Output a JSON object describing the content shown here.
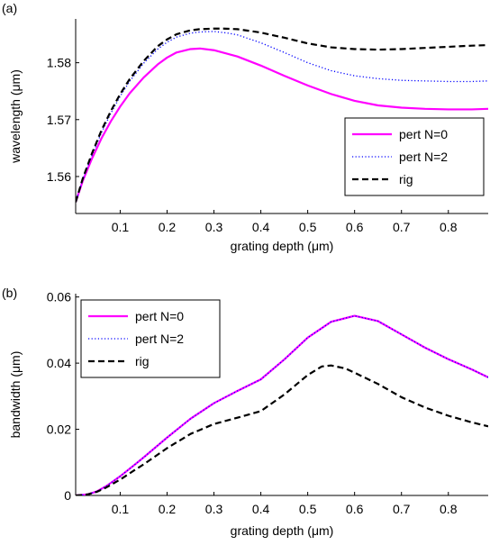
{
  "chart_data": [
    {
      "type": "line",
      "panel_label": "(a)",
      "xlabel": "grating depth (μm)",
      "ylabel": "wavelength (μm)",
      "xlim": [
        0.005,
        0.885
      ],
      "ylim": [
        1.5535,
        1.5877
      ],
      "xticks": [
        0.1,
        0.2,
        0.3,
        0.4,
        0.5,
        0.6,
        0.7,
        0.8
      ],
      "yticks": [
        1.56,
        1.57,
        1.58
      ],
      "ytick_labels": [
        "1.56",
        "1.57",
        "1.58"
      ],
      "legend_position": "bottom-right",
      "series": [
        {
          "name": "pert N=0",
          "color": "#ff00ff",
          "style": "solid",
          "x": [
            0.005,
            0.02,
            0.04,
            0.06,
            0.08,
            0.1,
            0.12,
            0.15,
            0.18,
            0.2,
            0.22,
            0.25,
            0.27,
            0.3,
            0.35,
            0.4,
            0.45,
            0.5,
            0.55,
            0.6,
            0.65,
            0.7,
            0.75,
            0.8,
            0.85,
            0.885
          ],
          "y": [
            1.5555,
            1.5592,
            1.5632,
            1.5667,
            1.5697,
            1.5723,
            1.5746,
            1.5774,
            1.5797,
            1.5809,
            1.5818,
            1.5824,
            1.5825,
            1.5822,
            1.5811,
            1.5795,
            1.5777,
            1.576,
            1.5745,
            1.5733,
            1.5725,
            1.5721,
            1.5719,
            1.5718,
            1.5718,
            1.5719
          ]
        },
        {
          "name": "pert N=2",
          "color": "#0000ff",
          "style": "dotted",
          "x": [
            0.005,
            0.02,
            0.04,
            0.06,
            0.08,
            0.1,
            0.12,
            0.15,
            0.18,
            0.2,
            0.22,
            0.25,
            0.27,
            0.3,
            0.33,
            0.35,
            0.4,
            0.45,
            0.5,
            0.55,
            0.6,
            0.65,
            0.7,
            0.75,
            0.8,
            0.85,
            0.885
          ],
          "y": [
            1.5555,
            1.5595,
            1.5638,
            1.5677,
            1.5711,
            1.5741,
            1.5767,
            1.5799,
            1.5824,
            1.5836,
            1.5845,
            1.5852,
            1.5854,
            1.5855,
            1.5852,
            1.5849,
            1.5835,
            1.5818,
            1.58,
            1.5786,
            1.5777,
            1.5772,
            1.5769,
            1.5768,
            1.5767,
            1.5767,
            1.5768
          ]
        },
        {
          "name": "rig",
          "color": "#000000",
          "style": "dashed",
          "x": [
            0.005,
            0.02,
            0.04,
            0.06,
            0.08,
            0.1,
            0.12,
            0.15,
            0.18,
            0.2,
            0.22,
            0.25,
            0.27,
            0.3,
            0.32,
            0.35,
            0.4,
            0.45,
            0.5,
            0.55,
            0.6,
            0.65,
            0.7,
            0.75,
            0.8,
            0.85,
            0.885
          ],
          "y": [
            1.5555,
            1.5596,
            1.5641,
            1.5681,
            1.5715,
            1.5745,
            1.5771,
            1.5803,
            1.5829,
            1.5841,
            1.585,
            1.5857,
            1.5859,
            1.586,
            1.586,
            1.5859,
            1.5853,
            1.5844,
            1.5834,
            1.5827,
            1.5824,
            1.5823,
            1.5824,
            1.5826,
            1.5828,
            1.583,
            1.5831
          ]
        }
      ]
    },
    {
      "type": "line",
      "panel_label": "(b)",
      "xlabel": "grating depth (μm)",
      "ylabel": "bandwidth (μm)",
      "xlim": [
        0.005,
        0.885
      ],
      "ylim": [
        0,
        0.061
      ],
      "xticks": [
        0.1,
        0.2,
        0.3,
        0.4,
        0.5,
        0.6,
        0.7,
        0.8
      ],
      "yticks": [
        0,
        0.02,
        0.04,
        0.06
      ],
      "ytick_labels": [
        "0",
        "0.02",
        "0.04",
        "0.06"
      ],
      "legend_position": "top-left",
      "series": [
        {
          "name": "pert N=0",
          "color": "#ff00ff",
          "style": "solid",
          "x": [
            0.005,
            0.03,
            0.05,
            0.07,
            0.1,
            0.13,
            0.15,
            0.2,
            0.25,
            0.3,
            0.35,
            0.4,
            0.45,
            0.5,
            0.55,
            0.6,
            0.65,
            0.7,
            0.75,
            0.8,
            0.85,
            0.885
          ],
          "y": [
            0,
            0.0003,
            0.0012,
            0.0028,
            0.0058,
            0.0092,
            0.0115,
            0.0175,
            0.0232,
            0.0279,
            0.0316,
            0.0351,
            0.0411,
            0.0477,
            0.0525,
            0.0543,
            0.0527,
            0.0487,
            0.0447,
            0.0412,
            0.0381,
            0.0357
          ]
        },
        {
          "name": "pert N=2",
          "color": "#0000ff",
          "style": "dotted",
          "x": [
            0.005,
            0.03,
            0.05,
            0.07,
            0.1,
            0.13,
            0.15,
            0.2,
            0.25,
            0.3,
            0.35,
            0.4,
            0.45,
            0.5,
            0.55,
            0.6,
            0.65,
            0.7,
            0.75,
            0.8,
            0.85,
            0.885
          ],
          "y": [
            0,
            0.0003,
            0.0012,
            0.0028,
            0.0058,
            0.0092,
            0.0115,
            0.0175,
            0.0232,
            0.0279,
            0.0316,
            0.0351,
            0.0411,
            0.0477,
            0.0525,
            0.0543,
            0.0527,
            0.0487,
            0.0447,
            0.0412,
            0.0381,
            0.0357
          ]
        },
        {
          "name": "rig",
          "color": "#000000",
          "style": "dashed",
          "x": [
            0.005,
            0.03,
            0.05,
            0.07,
            0.1,
            0.13,
            0.15,
            0.2,
            0.25,
            0.3,
            0.35,
            0.4,
            0.45,
            0.5,
            0.53,
            0.55,
            0.58,
            0.6,
            0.65,
            0.7,
            0.75,
            0.8,
            0.85,
            0.885
          ],
          "y": [
            0,
            0.0003,
            0.0011,
            0.0024,
            0.0048,
            0.0076,
            0.0094,
            0.0143,
            0.0186,
            0.0216,
            0.0235,
            0.0255,
            0.0305,
            0.0364,
            0.039,
            0.0393,
            0.0384,
            0.0371,
            0.0337,
            0.0297,
            0.0266,
            0.0241,
            0.0221,
            0.0209
          ]
        }
      ]
    }
  ]
}
